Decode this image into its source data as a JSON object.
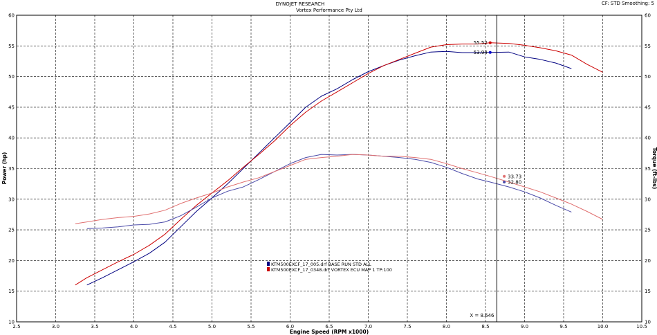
{
  "header": {
    "title": "DYNOJET RESEARCH",
    "subtitle": "Vortex Performance Pty Ltd",
    "corner": "CF: STD  Smoothing: 5"
  },
  "chart_data": {
    "type": "line",
    "xlabel": "Engine Speed (RPM x1000)",
    "ylabel": "Power (hp)",
    "y2label": "Torque (ft-lbs)",
    "xlim": [
      2.5,
      10.5
    ],
    "ylim": [
      10,
      60
    ],
    "x_ticks": [
      "2.5",
      "3.0",
      "3.5",
      "4.0",
      "4.5",
      "5.0",
      "5.5",
      "6.0",
      "6.5",
      "7.0",
      "7.5",
      "8.0",
      "8.5",
      "9.0",
      "9.5",
      "10.0",
      "10.5"
    ],
    "y_ticks": [
      "10",
      "15",
      "20",
      "25",
      "30",
      "35",
      "40",
      "45",
      "50",
      "55",
      "60"
    ],
    "grid": true,
    "legend_position": "center-left",
    "cursor": {
      "x": 8.646,
      "label": "X = 8.646"
    },
    "series": [
      {
        "name": "KTM500EXCF_17_005.drf BASE RUN STD ALL",
        "color": "#000080",
        "kind": "power",
        "x": [
          3.4,
          3.6,
          3.8,
          4.0,
          4.2,
          4.4,
          4.6,
          4.8,
          5.0,
          5.2,
          5.4,
          5.6,
          5.8,
          6.0,
          6.2,
          6.4,
          6.6,
          6.8,
          7.0,
          7.2,
          7.4,
          7.6,
          7.8,
          8.0,
          8.2,
          8.4,
          8.56,
          8.8,
          9.0,
          9.2,
          9.4,
          9.6
        ],
        "y": [
          16.0,
          17.2,
          18.5,
          19.8,
          21.2,
          23.0,
          25.5,
          28.0,
          30.2,
          32.5,
          35.0,
          37.5,
          40.0,
          42.5,
          45.0,
          46.8,
          48.0,
          49.5,
          50.8,
          51.8,
          52.7,
          53.4,
          54.0,
          54.1,
          53.9,
          53.9,
          53.94,
          54.0,
          53.2,
          52.8,
          52.2,
          51.3
        ]
      },
      {
        "name": "KTM500EXCF_17_0348.drf VORTEX ECU MAP 1 TP:100",
        "color": "#cc0000",
        "kind": "power",
        "x": [
          3.25,
          3.4,
          3.6,
          3.8,
          4.0,
          4.2,
          4.4,
          4.6,
          4.8,
          5.0,
          5.2,
          5.4,
          5.6,
          5.8,
          6.0,
          6.2,
          6.4,
          6.6,
          6.8,
          7.0,
          7.2,
          7.4,
          7.6,
          7.8,
          8.0,
          8.2,
          8.4,
          8.56,
          8.8,
          9.0,
          9.2,
          9.4,
          9.6,
          9.8,
          10.0
        ],
        "y": [
          16.0,
          17.2,
          18.5,
          19.8,
          21.0,
          22.5,
          24.3,
          26.7,
          29.0,
          31.0,
          33.0,
          35.2,
          37.3,
          39.5,
          42.0,
          44.2,
          46.0,
          47.5,
          49.0,
          50.5,
          51.8,
          52.8,
          53.8,
          54.8,
          55.2,
          55.3,
          55.3,
          55.52,
          55.4,
          55.1,
          54.7,
          54.2,
          53.5,
          52.0,
          50.7
        ]
      },
      {
        "name": "KTM500EXCF_17_005.drf BASE RUN STD ALL",
        "color": "#4a4aa8",
        "kind": "torque",
        "x": [
          3.4,
          3.6,
          3.8,
          4.0,
          4.2,
          4.4,
          4.6,
          4.8,
          5.0,
          5.2,
          5.4,
          5.6,
          5.8,
          6.0,
          6.2,
          6.4,
          6.6,
          6.8,
          7.0,
          7.2,
          7.4,
          7.6,
          7.8,
          8.0,
          8.2,
          8.4,
          8.56,
          8.8,
          9.0,
          9.2,
          9.4,
          9.6
        ],
        "y": [
          25.2,
          25.3,
          25.5,
          25.8,
          25.9,
          26.3,
          27.3,
          28.7,
          30.2,
          31.3,
          32.0,
          33.2,
          34.5,
          35.8,
          36.8,
          37.3,
          37.2,
          37.3,
          37.2,
          37.0,
          36.8,
          36.5,
          36.0,
          35.2,
          34.2,
          33.3,
          32.8,
          32.0,
          31.2,
          30.2,
          29.0,
          27.9
        ]
      },
      {
        "name": "KTM500EXCF_17_0348.drf VORTEX ECU MAP 1 TP:100",
        "color": "#e07070",
        "kind": "torque",
        "x": [
          3.25,
          3.4,
          3.6,
          3.8,
          4.0,
          4.2,
          4.4,
          4.6,
          4.8,
          5.0,
          5.2,
          5.4,
          5.6,
          5.8,
          6.0,
          6.2,
          6.4,
          6.6,
          6.8,
          7.0,
          7.2,
          7.4,
          7.6,
          7.8,
          8.0,
          8.2,
          8.4,
          8.56,
          8.8,
          9.0,
          9.2,
          9.4,
          9.6,
          9.8,
          10.0
        ],
        "y": [
          26.0,
          26.3,
          26.7,
          27.0,
          27.2,
          27.6,
          28.2,
          29.3,
          30.2,
          31.0,
          32.0,
          32.8,
          33.5,
          34.5,
          35.5,
          36.5,
          36.8,
          37.0,
          37.3,
          37.2,
          37.0,
          37.0,
          36.8,
          36.5,
          35.8,
          35.0,
          34.3,
          33.73,
          32.8,
          32.0,
          31.2,
          30.2,
          29.2,
          28.0,
          26.7
        ]
      }
    ],
    "annotations": [
      {
        "text": "55.52",
        "x": 8.56,
        "y": 55.52,
        "color": "#cc0000"
      },
      {
        "text": "53.94",
        "x": 8.56,
        "y": 53.94,
        "color": "#0000cc"
      },
      {
        "text": "33.73",
        "x": 8.74,
        "y": 33.73,
        "color": "#e07070"
      },
      {
        "text": "32.80",
        "x": 8.74,
        "y": 32.8,
        "color": "#4a4aa8"
      }
    ]
  }
}
